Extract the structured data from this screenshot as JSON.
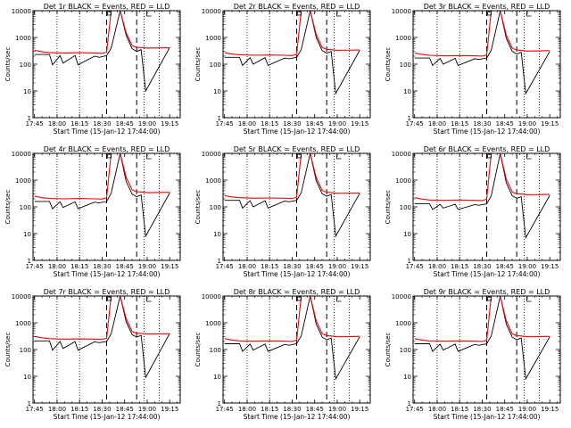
{
  "chart_data": [
    {
      "type": "line",
      "title": "Det 1r BLACK = Events, RED = LLD",
      "xlabel": "Start Time (15-Jan-12 17:44:00)",
      "ylabel": "Counts/sec",
      "x_ticks": [
        "17:45",
        "18:00",
        "18:15",
        "18:30",
        "18:45",
        "19:00",
        "19:15"
      ],
      "y_ticks": [
        "1",
        "10",
        "100",
        "1000",
        "10000"
      ],
      "ylim": [
        1,
        10000
      ],
      "yscale": "log",
      "series": [
        {
          "color": "#000000",
          "x": [
            "17:45",
            "17:55",
            "17:57",
            "18:02",
            "18:04",
            "18:12",
            "18:14",
            "18:25",
            "18:28",
            "18:33",
            "18:36",
            "18:42",
            "18:46",
            "18:50",
            "18:53",
            "18:56",
            "18:59",
            "19:15"
          ],
          "y": [
            230,
            230,
            95,
            210,
            110,
            210,
            95,
            200,
            180,
            210,
            400,
            10000,
            1200,
            380,
            300,
            350,
            10,
            420
          ]
        },
        {
          "color": "#ff0000",
          "x": [
            "17:45",
            "17:50",
            "17:55",
            "18:05",
            "18:15",
            "18:25",
            "18:30",
            "18:33",
            "18:36",
            "18:42",
            "18:46",
            "18:50",
            "18:53",
            "18:56",
            "19:00",
            "19:15"
          ],
          "y": [
            330,
            290,
            270,
            260,
            270,
            260,
            255,
            280,
            10000,
            10000,
            1500,
            500,
            420,
            420,
            400,
            410
          ]
        }
      ]
    },
    {
      "type": "line",
      "title": "Det 2r BLACK = Events, RED = LLD",
      "xlabel": "Start Time (15-Jan-12 17:44:00)",
      "ylabel": "Counts/sec",
      "x_ticks": [
        "17:45",
        "18:00",
        "18:15",
        "18:30",
        "18:45",
        "19:00",
        "19:15"
      ],
      "y_ticks": [
        "1",
        "10",
        "100",
        "1000",
        "10000"
      ],
      "ylim": [
        1,
        10000
      ],
      "yscale": "log",
      "series": [
        {
          "color": "#000000",
          "x": [
            "17:45",
            "17:55",
            "17:57",
            "18:02",
            "18:04",
            "18:12",
            "18:14",
            "18:25",
            "18:28",
            "18:33",
            "18:36",
            "18:42",
            "18:46",
            "18:50",
            "18:53",
            "18:56",
            "18:59",
            "19:15"
          ],
          "y": [
            180,
            180,
            90,
            175,
            100,
            175,
            90,
            170,
            160,
            180,
            350,
            10000,
            1000,
            320,
            260,
            300,
            8,
            330
          ]
        },
        {
          "color": "#ff0000",
          "x": [
            "17:45",
            "17:50",
            "17:55",
            "18:05",
            "18:15",
            "18:25",
            "18:30",
            "18:33",
            "18:36",
            "18:42",
            "18:46",
            "18:50",
            "18:53",
            "18:56",
            "19:00",
            "19:15"
          ],
          "y": [
            270,
            240,
            225,
            215,
            220,
            215,
            210,
            235,
            10000,
            10000,
            1300,
            420,
            360,
            350,
            330,
            340
          ]
        }
      ]
    },
    {
      "type": "line",
      "title": "Det 3r BLACK = Events, RED = LLD",
      "xlabel": "Start Time (15-Jan-12 17:44:00)",
      "ylabel": "Counts/sec",
      "x_ticks": [
        "17:45",
        "18:00",
        "18:15",
        "18:30",
        "18:45",
        "19:00",
        "19:15"
      ],
      "y_ticks": [
        "1",
        "10",
        "100",
        "1000",
        "10000"
      ],
      "ylim": [
        1,
        10000
      ],
      "yscale": "log",
      "series": [
        {
          "color": "#000000",
          "x": [
            "17:45",
            "17:55",
            "17:57",
            "18:02",
            "18:04",
            "18:12",
            "18:14",
            "18:25",
            "18:28",
            "18:33",
            "18:36",
            "18:42",
            "18:46",
            "18:50",
            "18:53",
            "18:56",
            "18:59",
            "19:15"
          ],
          "y": [
            170,
            170,
            90,
            165,
            100,
            165,
            90,
            160,
            150,
            170,
            330,
            10000,
            950,
            300,
            240,
            280,
            8,
            300
          ]
        },
        {
          "color": "#ff0000",
          "x": [
            "17:45",
            "17:50",
            "17:55",
            "18:05",
            "18:15",
            "18:25",
            "18:30",
            "18:33",
            "18:36",
            "18:42",
            "18:46",
            "18:50",
            "18:53",
            "18:56",
            "19:00",
            "19:15"
          ],
          "y": [
            260,
            230,
            215,
            205,
            210,
            205,
            200,
            225,
            10000,
            10000,
            1250,
            400,
            340,
            330,
            310,
            320
          ]
        }
      ]
    },
    {
      "type": "line",
      "title": "Det 4r BLACK = Events, RED = LLD",
      "xlabel": "Start Time (15-Jan-12 17:44:00)",
      "ylabel": "Counts/sec",
      "x_ticks": [
        "17:45",
        "18:00",
        "18:15",
        "18:30",
        "18:45",
        "19:00",
        "19:15"
      ],
      "y_ticks": [
        "1",
        "10",
        "100",
        "1000",
        "10000"
      ],
      "ylim": [
        1,
        10000
      ],
      "yscale": "log",
      "series": [
        {
          "color": "#000000",
          "x": [
            "17:45",
            "17:55",
            "17:57",
            "18:02",
            "18:04",
            "18:12",
            "18:14",
            "18:25",
            "18:28",
            "18:33",
            "18:36",
            "18:42",
            "18:46",
            "18:50",
            "18:53",
            "18:56",
            "18:59",
            "19:15"
          ],
          "y": [
            160,
            160,
            85,
            155,
            95,
            155,
            85,
            150,
            140,
            160,
            320,
            10000,
            900,
            300,
            240,
            280,
            8,
            330
          ]
        },
        {
          "color": "#ff0000",
          "x": [
            "17:45",
            "17:50",
            "17:55",
            "18:05",
            "18:15",
            "18:25",
            "18:30",
            "18:33",
            "18:36",
            "18:42",
            "18:46",
            "18:50",
            "18:53",
            "18:56",
            "19:00",
            "19:15"
          ],
          "y": [
            250,
            220,
            205,
            200,
            205,
            200,
            195,
            220,
            10000,
            10000,
            1300,
            430,
            370,
            360,
            340,
            350
          ]
        }
      ]
    },
    {
      "type": "line",
      "title": "Det 5r BLACK = Events, RED = LLD",
      "xlabel": "Start Time (15-Jan-12 17:44:00)",
      "ylabel": "Counts/sec",
      "x_ticks": [
        "17:45",
        "18:00",
        "18:15",
        "18:30",
        "18:45",
        "19:00",
        "19:15"
      ],
      "y_ticks": [
        "1",
        "10",
        "100",
        "1000",
        "10000"
      ],
      "ylim": [
        1,
        10000
      ],
      "yscale": "log",
      "series": [
        {
          "color": "#000000",
          "x": [
            "17:45",
            "17:55",
            "17:57",
            "18:02",
            "18:04",
            "18:12",
            "18:14",
            "18:25",
            "18:28",
            "18:33",
            "18:36",
            "18:42",
            "18:46",
            "18:50",
            "18:53",
            "18:56",
            "18:59",
            "19:15"
          ],
          "y": [
            175,
            175,
            90,
            170,
            100,
            170,
            90,
            165,
            155,
            175,
            340,
            10000,
            950,
            310,
            250,
            290,
            8,
            320
          ]
        },
        {
          "color": "#ff0000",
          "x": [
            "17:45",
            "17:50",
            "17:55",
            "18:05",
            "18:15",
            "18:25",
            "18:30",
            "18:33",
            "18:36",
            "18:42",
            "18:46",
            "18:50",
            "18:53",
            "18:56",
            "19:00",
            "19:15"
          ],
          "y": [
            265,
            235,
            220,
            210,
            215,
            210,
            205,
            230,
            10000,
            10000,
            1250,
            410,
            350,
            340,
            320,
            330
          ]
        }
      ]
    },
    {
      "type": "line",
      "title": "Det 6r BLACK = Events, RED = LLD",
      "xlabel": "Start Time (15-Jan-12 17:44:00)",
      "ylabel": "Counts/sec",
      "x_ticks": [
        "17:45",
        "18:00",
        "18:15",
        "18:30",
        "18:45",
        "19:00",
        "19:15"
      ],
      "y_ticks": [
        "1",
        "10",
        "100",
        "1000",
        "10000"
      ],
      "ylim": [
        1,
        10000
      ],
      "yscale": "log",
      "series": [
        {
          "color": "#000000",
          "x": [
            "17:45",
            "17:55",
            "17:57",
            "18:02",
            "18:04",
            "18:12",
            "18:14",
            "18:25",
            "18:28",
            "18:33",
            "18:36",
            "18:42",
            "18:46",
            "18:50",
            "18:53",
            "18:56",
            "18:59",
            "19:15"
          ],
          "y": [
            130,
            130,
            80,
            125,
            90,
            125,
            80,
            120,
            115,
            130,
            260,
            10000,
            800,
            260,
            210,
            240,
            7,
            270
          ]
        },
        {
          "color": "#ff0000",
          "x": [
            "17:45",
            "17:50",
            "17:55",
            "18:05",
            "18:15",
            "18:25",
            "18:30",
            "18:33",
            "18:36",
            "18:42",
            "18:46",
            "18:50",
            "18:53",
            "18:56",
            "19:00",
            "19:15"
          ],
          "y": [
            220,
            195,
            180,
            175,
            180,
            175,
            170,
            195,
            10000,
            10000,
            1100,
            360,
            310,
            300,
            285,
            290
          ]
        }
      ]
    },
    {
      "type": "line",
      "title": "Det 7r BLACK = Events, RED = LLD",
      "xlabel": "Start Time (15-Jan-12 17:44:00)",
      "ylabel": "Counts/sec",
      "x_ticks": [
        "17:45",
        "18:00",
        "18:15",
        "18:30",
        "18:45",
        "19:00",
        "19:15"
      ],
      "y_ticks": [
        "1",
        "10",
        "100",
        "1000",
        "10000"
      ],
      "ylim": [
        1,
        10000
      ],
      "yscale": "log",
      "series": [
        {
          "color": "#000000",
          "x": [
            "17:45",
            "17:55",
            "17:57",
            "18:02",
            "18:04",
            "18:12",
            "18:14",
            "18:25",
            "18:28",
            "18:33",
            "18:36",
            "18:42",
            "18:46",
            "18:50",
            "18:53",
            "18:56",
            "18:59",
            "19:15"
          ],
          "y": [
            210,
            210,
            95,
            200,
            110,
            200,
            95,
            195,
            180,
            200,
            390,
            10000,
            1100,
            360,
            290,
            340,
            9,
            400
          ]
        },
        {
          "color": "#ff0000",
          "x": [
            "17:45",
            "17:50",
            "17:55",
            "18:05",
            "18:15",
            "18:25",
            "18:30",
            "18:33",
            "18:36",
            "18:42",
            "18:46",
            "18:50",
            "18:53",
            "18:56",
            "19:00",
            "19:15"
          ],
          "y": [
            310,
            275,
            255,
            245,
            250,
            245,
            240,
            265,
            10000,
            10000,
            1450,
            470,
            400,
            400,
            380,
            390
          ]
        }
      ]
    },
    {
      "type": "line",
      "title": "Det 8r BLACK = Events, RED = LLD",
      "xlabel": "Start Time (15-Jan-12 17:44:00)",
      "ylabel": "Counts/sec",
      "x_ticks": [
        "17:45",
        "18:00",
        "18:15",
        "18:30",
        "18:45",
        "19:00",
        "19:15"
      ],
      "y_ticks": [
        "1",
        "10",
        "100",
        "1000",
        "10000"
      ],
      "ylim": [
        1,
        10000
      ],
      "yscale": "log",
      "series": [
        {
          "color": "#000000",
          "x": [
            "17:45",
            "17:55",
            "17:57",
            "18:02",
            "18:04",
            "18:12",
            "18:14",
            "18:25",
            "18:28",
            "18:33",
            "18:36",
            "18:42",
            "18:46",
            "18:50",
            "18:53",
            "18:56",
            "18:59",
            "19:15"
          ],
          "y": [
            165,
            165,
            85,
            160,
            95,
            160,
            85,
            155,
            145,
            165,
            320,
            10000,
            900,
            290,
            230,
            270,
            8,
            300
          ]
        },
        {
          "color": "#ff0000",
          "x": [
            "17:45",
            "17:50",
            "17:55",
            "18:05",
            "18:15",
            "18:25",
            "18:30",
            "18:33",
            "18:36",
            "18:42",
            "18:46",
            "18:50",
            "18:53",
            "18:56",
            "19:00",
            "19:15"
          ],
          "y": [
            255,
            225,
            210,
            205,
            210,
            205,
            200,
            225,
            10000,
            10000,
            1200,
            390,
            330,
            320,
            300,
            310
          ]
        }
      ]
    },
    {
      "type": "line",
      "title": "Det 9r BLACK = Events, RED = LLD",
      "xlabel": "Start Time (15-Jan-12 17:44:00)",
      "ylabel": "Counts/sec",
      "x_ticks": [
        "17:45",
        "18:00",
        "18:15",
        "18:30",
        "18:45",
        "19:00",
        "19:15"
      ],
      "y_ticks": [
        "1",
        "10",
        "100",
        "1000",
        "10000"
      ],
      "ylim": [
        1,
        10000
      ],
      "yscale": "log",
      "series": [
        {
          "color": "#000000",
          "x": [
            "17:45",
            "17:55",
            "17:57",
            "18:02",
            "18:04",
            "18:12",
            "18:14",
            "18:25",
            "18:28",
            "18:33",
            "18:36",
            "18:42",
            "18:46",
            "18:50",
            "18:53",
            "18:56",
            "18:59",
            "19:15"
          ],
          "y": [
            165,
            165,
            85,
            160,
            95,
            160,
            85,
            155,
            145,
            165,
            320,
            10000,
            900,
            290,
            230,
            270,
            8,
            300
          ]
        },
        {
          "color": "#ff0000",
          "x": [
            "17:45",
            "17:50",
            "17:55",
            "18:05",
            "18:15",
            "18:25",
            "18:30",
            "18:33",
            "18:36",
            "18:42",
            "18:46",
            "18:50",
            "18:53",
            "18:56",
            "19:00",
            "19:15"
          ],
          "y": [
            255,
            225,
            210,
            205,
            210,
            205,
            200,
            225,
            10000,
            10000,
            1200,
            390,
            330,
            320,
            300,
            310
          ]
        }
      ]
    }
  ]
}
